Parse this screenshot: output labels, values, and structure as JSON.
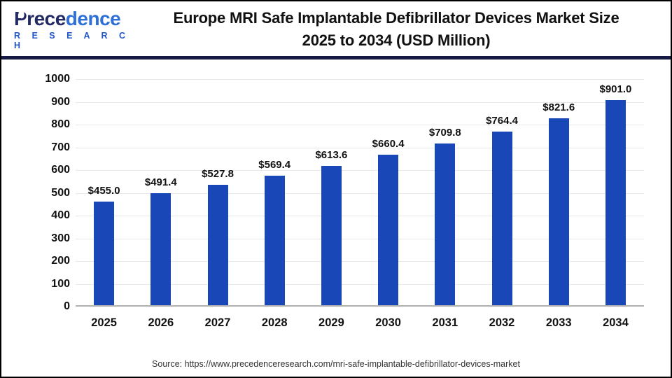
{
  "header": {
    "logo": {
      "name_dark": "Prece",
      "name_light": "dence",
      "subtitle": "R E S E A R C H"
    },
    "title_line1": "Europe MRI Safe Implantable Defibrillator Devices Market Size",
    "title_line2": "2025 to 2034 (USD Million)"
  },
  "chart_data": {
    "type": "bar",
    "title": "Europe MRI Safe Implantable Defibrillator Devices Market Size 2025 to 2034 (USD Million)",
    "categories": [
      "2025",
      "2026",
      "2027",
      "2028",
      "2029",
      "2030",
      "2031",
      "2032",
      "2033",
      "2034"
    ],
    "values": [
      455.0,
      491.4,
      527.8,
      569.4,
      613.6,
      660.4,
      709.8,
      764.4,
      821.6,
      901.0
    ],
    "value_labels": [
      "$455.0",
      "$491.4",
      "$527.8",
      "$569.4",
      "$613.6",
      "$660.4",
      "$709.8",
      "$764.4",
      "$821.6",
      "$901.0"
    ],
    "unit": "USD Million",
    "xlabel": "",
    "ylabel": "",
    "ylim": [
      0,
      1000
    ],
    "yticks": [
      0,
      100,
      200,
      300,
      400,
      500,
      600,
      700,
      800,
      900,
      1000
    ],
    "grid": "horizontal",
    "legend": "none",
    "bar_color": "#1a47b8"
  },
  "footer": {
    "source": "Source: https://www.precedenceresearch.com/mri-safe-implantable-defibrillator-devices-market"
  },
  "colors": {
    "bar": "#1a47b8",
    "header_divider": "#161a45",
    "logo_dark": "#232a63",
    "logo_light": "#2f6fd8",
    "logo_subtitle": "#2156c8",
    "gridline": "#e8e8e8",
    "axis_line": "#b0b0b0",
    "title_text": "#111111",
    "source_text": "#333333"
  }
}
